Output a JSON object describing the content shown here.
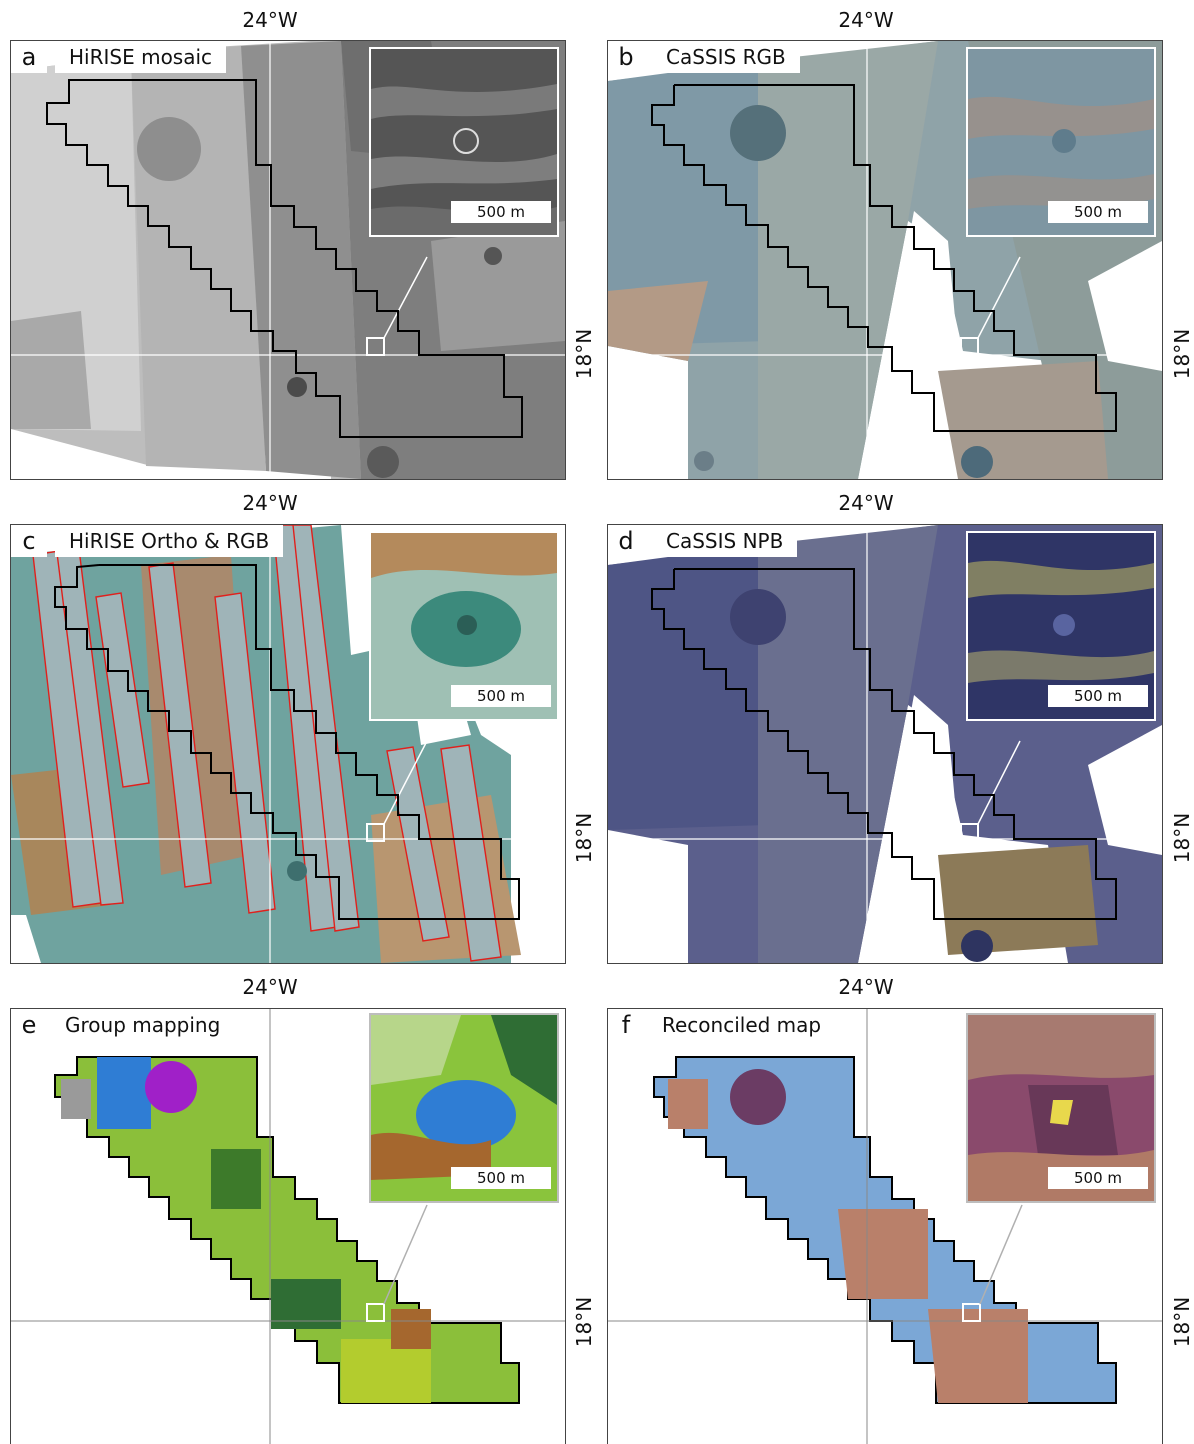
{
  "axes": {
    "lon_label": "24°W",
    "lat_label": "18°N"
  },
  "panels": [
    {
      "letter": "a",
      "title": "HiRISE mosaic",
      "scale_label": "500 m",
      "style": "grey"
    },
    {
      "letter": "b",
      "title": "CaSSIS RGB",
      "scale_label": "500 m",
      "style": "cassis-rgb"
    },
    {
      "letter": "c",
      "title": "HiRISE Ortho & RGB",
      "scale_label": "500 m",
      "style": "ortho"
    },
    {
      "letter": "d",
      "title": "CaSSIS NPB",
      "scale_label": "500 m",
      "style": "npb"
    },
    {
      "letter": "e",
      "title": "Group mapping",
      "scale_label": "500 m",
      "style": "group"
    },
    {
      "letter": "f",
      "title": "Reconciled map",
      "scale_label": "500 m",
      "style": "reconciled"
    }
  ],
  "colors": {
    "study_outline": "#000000",
    "graticule": "#ffffff",
    "strip_outline": "#e0201c",
    "inset_leader_white": "#ffffff",
    "inset_leader_grey": "#b0b0b0"
  }
}
